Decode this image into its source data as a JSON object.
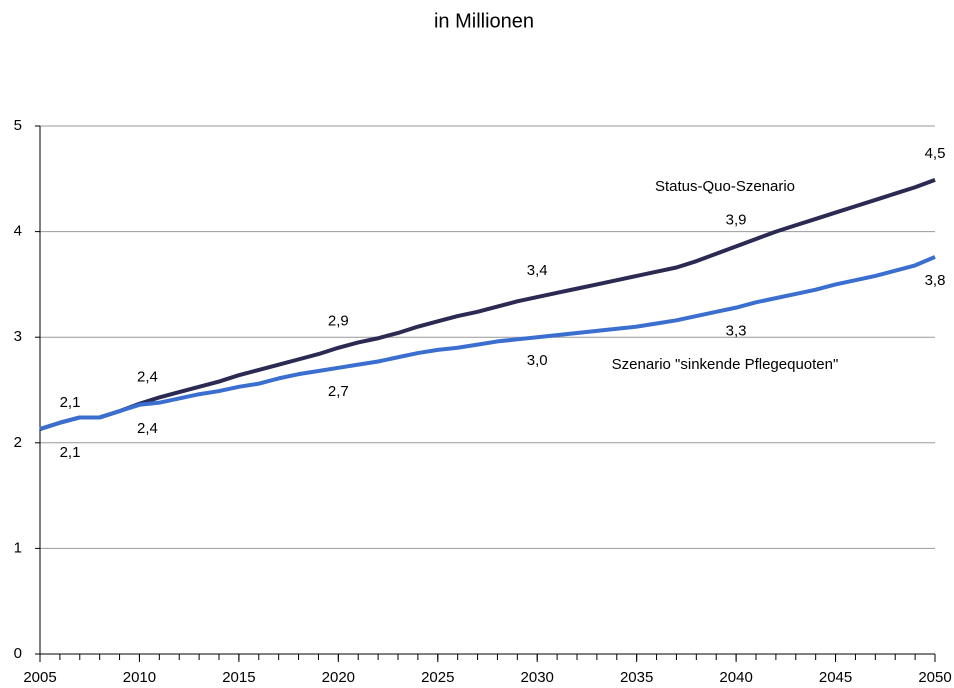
{
  "chart_data": {
    "type": "line",
    "title": "in Millionen",
    "x": [
      2005,
      2006,
      2007,
      2008,
      2009,
      2010,
      2011,
      2012,
      2013,
      2014,
      2015,
      2016,
      2017,
      2018,
      2019,
      2020,
      2021,
      2022,
      2023,
      2024,
      2025,
      2026,
      2027,
      2028,
      2029,
      2030,
      2031,
      2032,
      2033,
      2034,
      2035,
      2036,
      2037,
      2038,
      2039,
      2040,
      2041,
      2042,
      2043,
      2044,
      2045,
      2046,
      2047,
      2048,
      2049,
      2050
    ],
    "series": [
      {
        "name": "Status-Quo-Szenario",
        "color": "#2b2a52",
        "values": [
          2.13,
          2.19,
          2.24,
          2.24,
          2.3,
          2.37,
          2.43,
          2.48,
          2.53,
          2.58,
          2.64,
          2.69,
          2.74,
          2.79,
          2.84,
          2.9,
          2.95,
          2.99,
          3.04,
          3.1,
          3.15,
          3.2,
          3.24,
          3.29,
          3.34,
          3.38,
          3.42,
          3.46,
          3.5,
          3.54,
          3.58,
          3.62,
          3.66,
          3.72,
          3.79,
          3.86,
          3.93,
          4.0,
          4.06,
          4.12,
          4.18,
          4.24,
          4.3,
          4.36,
          4.42,
          4.49
        ],
        "value_labels": [
          "2,1",
          null,
          null,
          null,
          null,
          "2,4",
          null,
          null,
          null,
          null,
          null,
          null,
          null,
          null,
          null,
          "2,9",
          null,
          null,
          null,
          null,
          null,
          null,
          null,
          null,
          null,
          "3,4",
          null,
          null,
          null,
          null,
          null,
          null,
          null,
          null,
          null,
          "3,9",
          null,
          null,
          null,
          null,
          null,
          null,
          null,
          null,
          null,
          "4,5"
        ]
      },
      {
        "name": "Szenario \"sinkende Pflegequoten\"",
        "color": "#3b6fcf",
        "values": [
          2.13,
          2.19,
          2.24,
          2.24,
          2.3,
          2.36,
          2.38,
          2.42,
          2.46,
          2.49,
          2.53,
          2.56,
          2.61,
          2.65,
          2.68,
          2.71,
          2.74,
          2.77,
          2.81,
          2.85,
          2.88,
          2.9,
          2.93,
          2.96,
          2.98,
          3.0,
          3.02,
          3.04,
          3.06,
          3.08,
          3.1,
          3.13,
          3.16,
          3.2,
          3.24,
          3.28,
          3.33,
          3.37,
          3.41,
          3.45,
          3.5,
          3.54,
          3.58,
          3.63,
          3.68,
          3.76
        ],
        "value_labels": [
          "2,1",
          null,
          null,
          null,
          null,
          "2,4",
          null,
          null,
          null,
          null,
          null,
          null,
          null,
          null,
          null,
          "2,7",
          null,
          null,
          null,
          null,
          null,
          null,
          null,
          null,
          null,
          "3,0",
          null,
          null,
          null,
          null,
          null,
          null,
          null,
          null,
          null,
          "3,3",
          null,
          null,
          null,
          null,
          null,
          null,
          null,
          null,
          null,
          "3,8"
        ]
      }
    ],
    "xlim": [
      2005,
      2050
    ],
    "xticks": [
      2005,
      2010,
      2015,
      2020,
      2025,
      2030,
      2035,
      2040,
      2045,
      2050
    ],
    "ylim": [
      0,
      5
    ],
    "yticks": [
      0,
      1,
      2,
      3,
      4,
      5
    ],
    "grid": true
  }
}
